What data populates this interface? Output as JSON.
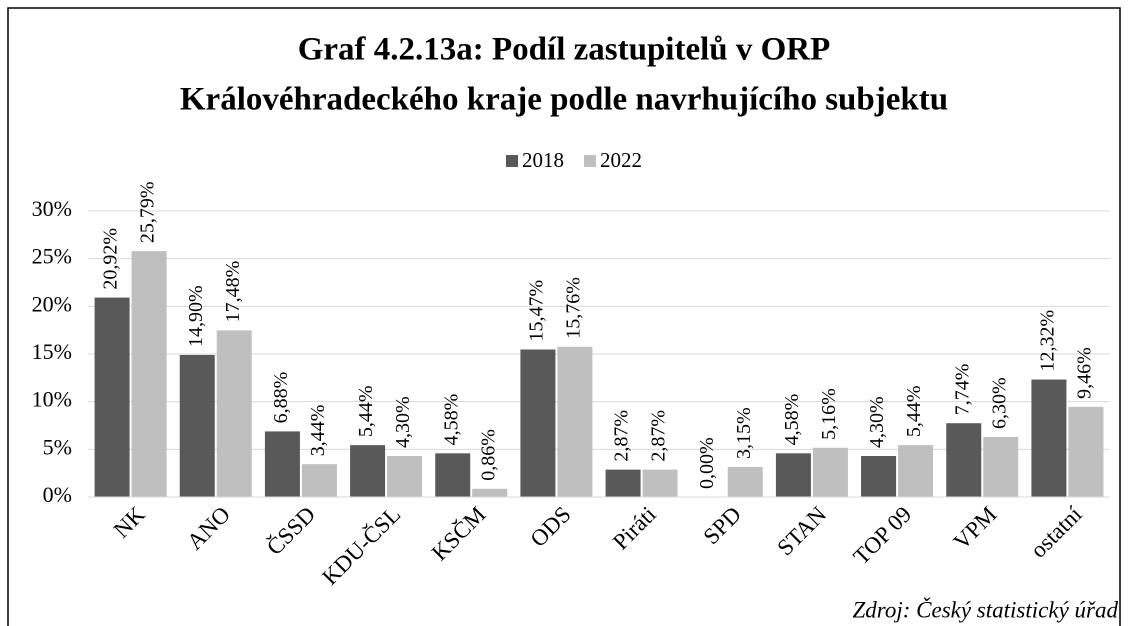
{
  "chart_data": {
    "type": "bar",
    "title": [
      "Graf 4.2.13a: Podíl zastupitelů v ORP",
      "Královéhradeckého kraje podle navrhujícího subjektu"
    ],
    "categories": [
      "NK",
      "ANO",
      "ČSSD",
      "KDU-ČSL",
      "KSČM",
      "ODS",
      "Piráti",
      "SPD",
      "STAN",
      "TOP 09",
      "VPM",
      "ostatní"
    ],
    "series": [
      {
        "name": "2018",
        "color": "#595959",
        "values": [
          20.92,
          14.9,
          6.88,
          5.44,
          4.58,
          15.47,
          2.87,
          0.0,
          4.58,
          4.3,
          7.74,
          12.32
        ],
        "value_labels": [
          "20,92%",
          "14,90%",
          "6,88%",
          "5,44%",
          "4,58%",
          "15,47%",
          "2,87%",
          "0,00%",
          "4,58%",
          "4,30%",
          "7,74%",
          "12,32%"
        ]
      },
      {
        "name": "2022",
        "color": "#bfbfbf",
        "values": [
          25.79,
          17.48,
          3.44,
          4.3,
          0.86,
          15.76,
          2.87,
          3.15,
          5.16,
          5.44,
          6.3,
          9.46
        ],
        "value_labels": [
          "25,79%",
          "17,48%",
          "3,44%",
          "4,30%",
          "0,86%",
          "15,76%",
          "2,87%",
          "3,15%",
          "5,16%",
          "5,44%",
          "6,30%",
          "9,46%"
        ]
      }
    ],
    "ylim": [
      0,
      30
    ],
    "yticks": [
      {
        "value": 0,
        "label": "0%"
      },
      {
        "value": 5,
        "label": "5%"
      },
      {
        "value": 10,
        "label": "10%"
      },
      {
        "value": 15,
        "label": "15%"
      },
      {
        "value": 20,
        "label": "20%"
      },
      {
        "value": 25,
        "label": "25%"
      },
      {
        "value": 30,
        "label": "30%"
      }
    ],
    "grid": true,
    "legend": "top",
    "source": "Zdroj: Český statistický úřad"
  }
}
